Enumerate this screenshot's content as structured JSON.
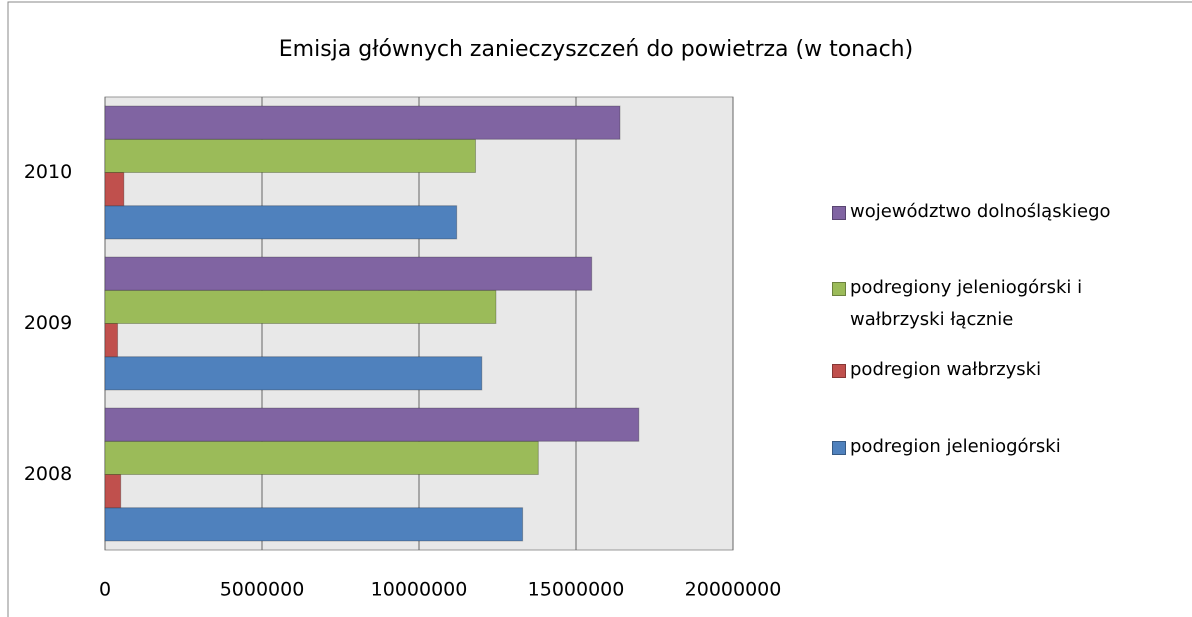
{
  "chart_data": {
    "type": "hbar",
    "title": "Emisja głównych zanieczyszczeń do powietrza (w tonach)",
    "categories": [
      "2008",
      "2009",
      "2010"
    ],
    "series": [
      {
        "name": "podregion jeleniogórski",
        "color": "#4f81bd",
        "values": [
          13300000,
          12000000,
          11200000
        ]
      },
      {
        "name": "podregion wałbrzyski",
        "color": "#c0504d",
        "values": [
          500000,
          400000,
          600000
        ]
      },
      {
        "name": "podregiony jeleniogórski i wałbrzyski łącznie",
        "color": "#9bbb59",
        "values": [
          13800000,
          12450000,
          11800000
        ]
      },
      {
        "name": "województwo dolnośląskiego",
        "color": "#8064a2",
        "values": [
          17000000,
          15500000,
          16400000
        ]
      }
    ],
    "xlim": [
      0,
      20000000
    ],
    "xticks": [
      0,
      5000000,
      10000000,
      15000000,
      20000000
    ],
    "grid": true,
    "legend": "right"
  }
}
